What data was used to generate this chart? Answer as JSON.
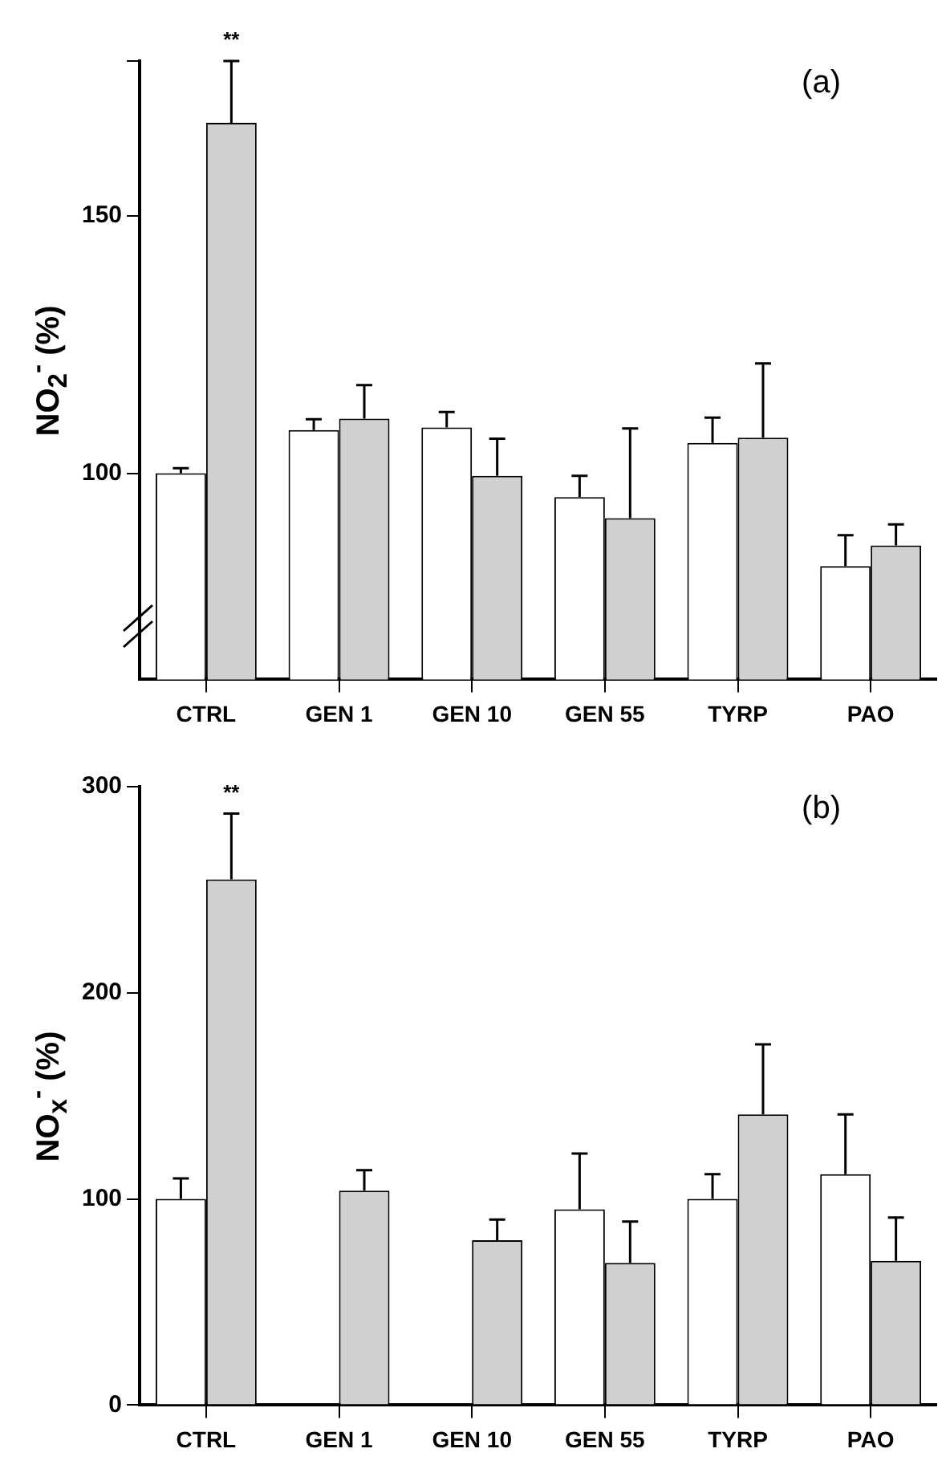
{
  "chart_data": [
    {
      "type": "bar",
      "categories": [
        "CTRL",
        "GEN 1",
        "GEN 10",
        "GEN 55",
        "TYRP",
        "PAO"
      ],
      "series": [
        {
          "color": "#ffffff",
          "values": [
            100,
            108.4,
            108.9,
            95.4,
            105.9,
            82
          ],
          "errors": [
            [
              100,
              101
            ],
            [
              108.4,
              110.5
            ],
            [
              108.9,
              111.9
            ],
            [
              95.4,
              99.5
            ],
            [
              105.9,
              110.8
            ],
            [
              82,
              88
            ]
          ]
        },
        {
          "color": "#d0d0d0",
          "values": [
            168,
            110.6,
            99.5,
            91.3,
            106.9,
            86
          ],
          "errors": [
            [
              168,
              180
            ],
            [
              110.6,
              117.1
            ],
            [
              99.5,
              106.7
            ],
            [
              91.3,
              108.7
            ],
            [
              106.9,
              121.3
            ],
            [
              86,
              90.1
            ]
          ]
        }
      ],
      "ylabel": "NO$_{2}$$^{-}$ (%)",
      "ylim": [
        60,
        180
      ],
      "yticks": [
        100,
        150,
        {
          "value": 180,
          "label": null
        }
      ],
      "annotations": [
        "**",
        "(a)"
      ],
      "grid": false,
      "legend": false
    },
    {
      "type": "bar",
      "categories": [
        "CTRL",
        "GEN 1",
        "GEN 10",
        "GEN 55",
        "TYRP",
        "PAO"
      ],
      "series": [
        {
          "color": "#ffffff",
          "values": [
            100,
            null,
            null,
            95,
            100,
            112
          ],
          "errors": [
            [
              100,
              110
            ],
            null,
            null,
            [
              95,
              122
            ],
            [
              100,
              112
            ],
            [
              112,
              141
            ]
          ]
        },
        {
          "color": "#d0d0d0",
          "values": [
            255,
            104,
            80,
            69,
            141,
            70
          ],
          "errors": [
            [
              255,
              287
            ],
            [
              104,
              114
            ],
            [
              80,
              90
            ],
            [
              69,
              89
            ],
            [
              141,
              175
            ],
            [
              70,
              91
            ]
          ]
        }
      ],
      "ylabel": "NO$_{x}$$^{-}$ (%)",
      "ylim": [
        0,
        300
      ],
      "yticks": [
        0,
        100,
        200,
        300
      ],
      "annotations": [
        "**",
        "(b)"
      ],
      "grid": false,
      "legend": false
    }
  ]
}
